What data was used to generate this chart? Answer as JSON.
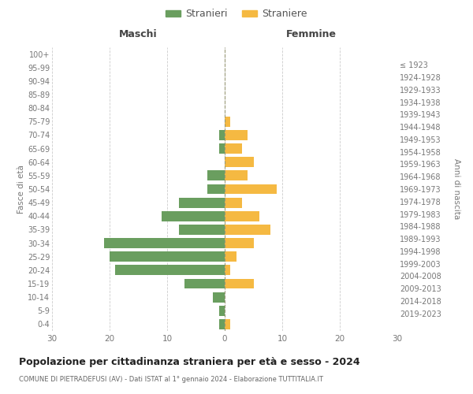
{
  "age_groups": [
    "0-4",
    "5-9",
    "10-14",
    "15-19",
    "20-24",
    "25-29",
    "30-34",
    "35-39",
    "40-44",
    "45-49",
    "50-54",
    "55-59",
    "60-64",
    "65-69",
    "70-74",
    "75-79",
    "80-84",
    "85-89",
    "90-94",
    "95-99",
    "100+"
  ],
  "birth_years": [
    "2019-2023",
    "2014-2018",
    "2009-2013",
    "2004-2008",
    "1999-2003",
    "1994-1998",
    "1989-1993",
    "1984-1988",
    "1979-1983",
    "1974-1978",
    "1969-1973",
    "1964-1968",
    "1959-1963",
    "1954-1958",
    "1949-1953",
    "1944-1948",
    "1939-1943",
    "1934-1938",
    "1929-1933",
    "1924-1928",
    "≤ 1923"
  ],
  "males": [
    1,
    1,
    2,
    7,
    19,
    20,
    21,
    8,
    11,
    8,
    3,
    3,
    0,
    1,
    1,
    0,
    0,
    0,
    0,
    0,
    0
  ],
  "females": [
    1,
    0,
    0,
    5,
    1,
    2,
    5,
    8,
    6,
    3,
    9,
    4,
    5,
    3,
    4,
    1,
    0,
    0,
    0,
    0,
    0
  ],
  "male_color": "#6a9e5f",
  "female_color": "#f5b942",
  "background_color": "#ffffff",
  "grid_color": "#cccccc",
  "title": "Popolazione per cittadinanza straniera per età e sesso - 2024",
  "subtitle": "COMUNE DI PIETRADEFUSI (AV) - Dati ISTAT al 1° gennaio 2024 - Elaborazione TUTTITALIA.IT",
  "legend_male": "Stranieri",
  "legend_female": "Straniere",
  "xlabel_left": "Maschi",
  "xlabel_right": "Femmine",
  "ylabel_left": "Fasce di età",
  "ylabel_right": "Anni di nascita",
  "xlim": 30
}
